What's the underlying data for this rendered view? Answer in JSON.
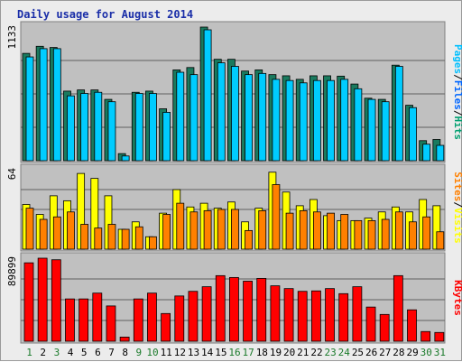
{
  "title": "Daily usage for August 2014",
  "chart_data": [
    {
      "type": "bar",
      "panel": "pages-files-hits",
      "y_axis_max_label": "1133",
      "y_axis_max": 1133,
      "grid": "horizontal",
      "legend": [
        {
          "label": "Pages",
          "color": "#00c0ff"
        },
        {
          "label": "Files",
          "color": "#0066ff"
        },
        {
          "label": "Hits",
          "color": "#00a070"
        }
      ],
      "categories": [
        "1",
        "2",
        "3",
        "4",
        "5",
        "6",
        "7",
        "8",
        "9",
        "10",
        "11",
        "12",
        "13",
        "14",
        "15",
        "16",
        "17",
        "18",
        "19",
        "20",
        "21",
        "22",
        "23",
        "24",
        "25",
        "26",
        "27",
        "28",
        "29",
        "30",
        "31"
      ],
      "series": [
        {
          "name": "Hits",
          "color": "#1a7a5e",
          "values": [
            910,
            970,
            960,
            590,
            600,
            600,
            520,
            60,
            580,
            590,
            440,
            770,
            790,
            1133,
            860,
            860,
            760,
            770,
            730,
            720,
            690,
            720,
            720,
            717,
            650,
            530,
            520,
            810,
            470,
            170,
            180
          ]
        },
        {
          "name": "Pages",
          "color": "#00ccff",
          "values": [
            880,
            950,
            950,
            550,
            570,
            580,
            500,
            40,
            570,
            570,
            410,
            750,
            730,
            1110,
            830,
            800,
            730,
            740,
            690,
            680,
            660,
            680,
            680,
            690,
            610,
            520,
            500,
            800,
            450,
            140,
            130
          ]
        }
      ]
    },
    {
      "type": "bar",
      "panel": "visits-sites",
      "y_axis_max_label": "64",
      "y_axis_max": 64,
      "grid": "horizontal",
      "legend": [
        {
          "label": "Sites",
          "color": "#ff8000"
        },
        {
          "label": "Visits",
          "color": "#ffff00"
        }
      ],
      "categories": [
        "1",
        "2",
        "3",
        "4",
        "5",
        "6",
        "7",
        "8",
        "9",
        "10",
        "11",
        "12",
        "13",
        "14",
        "15",
        "16",
        "17",
        "18",
        "19",
        "20",
        "21",
        "22",
        "23",
        "24",
        "25",
        "26",
        "27",
        "28",
        "29",
        "30",
        "31"
      ],
      "series": [
        {
          "name": "Visits",
          "color": "#ffff00",
          "values": [
            36,
            28,
            43,
            39,
            61,
            57,
            43,
            16,
            22,
            10,
            29,
            48,
            34,
            37,
            33,
            38,
            22,
            33,
            62,
            46,
            35,
            40,
            27,
            23,
            23,
            25,
            30,
            34,
            30,
            40,
            35
          ]
        },
        {
          "name": "Sites",
          "color": "#ff8000",
          "values": [
            33,
            24,
            26,
            30,
            20,
            17,
            20,
            16,
            18,
            10,
            28,
            37,
            30,
            31,
            32,
            32,
            15,
            31,
            52,
            29,
            31,
            30,
            29,
            28,
            23,
            23,
            24,
            30,
            22,
            26,
            14
          ]
        }
      ]
    },
    {
      "type": "bar",
      "panel": "kbytes",
      "y_axis_max_label": "89899",
      "y_axis_max": 89899,
      "grid": "horizontal",
      "legend": [
        {
          "label": "KBytes",
          "color": "#ff0000"
        }
      ],
      "categories": [
        "1",
        "2",
        "3",
        "4",
        "5",
        "6",
        "7",
        "8",
        "9",
        "10",
        "11",
        "12",
        "13",
        "14",
        "15",
        "16",
        "17",
        "18",
        "19",
        "20",
        "21",
        "22",
        "23",
        "24",
        "25",
        "26",
        "27",
        "28",
        "29",
        "30",
        "31"
      ],
      "series": [
        {
          "name": "KBytes",
          "color": "#ff0000",
          "values": [
            84900,
            89899,
            88200,
            45800,
            45800,
            52100,
            38200,
            4500,
            45800,
            52100,
            30000,
            49000,
            54000,
            59000,
            71000,
            69000,
            65000,
            68000,
            60000,
            57000,
            54000,
            54500,
            57000,
            51500,
            59000,
            37000,
            29000,
            71000,
            34000,
            10500,
            9500
          ]
        }
      ]
    }
  ],
  "x_labels": [
    {
      "text": "1",
      "color": "#1a7a2a"
    },
    {
      "text": "2",
      "color": "#000000"
    },
    {
      "text": "3",
      "color": "#1a7a2a"
    },
    {
      "text": "4",
      "color": "#000000"
    },
    {
      "text": "5",
      "color": "#000000"
    },
    {
      "text": "6",
      "color": "#000000"
    },
    {
      "text": "7",
      "color": "#000000"
    },
    {
      "text": "8",
      "color": "#000000"
    },
    {
      "text": "9",
      "color": "#1a7a2a"
    },
    {
      "text": "10",
      "color": "#1a7a2a"
    },
    {
      "text": "11",
      "color": "#000000"
    },
    {
      "text": "12",
      "color": "#000000"
    },
    {
      "text": "13",
      "color": "#000000"
    },
    {
      "text": "14",
      "color": "#000000"
    },
    {
      "text": "15",
      "color": "#000000"
    },
    {
      "text": "16",
      "color": "#1a7a2a"
    },
    {
      "text": "17",
      "color": "#1a7a2a"
    },
    {
      "text": "18",
      "color": "#000000"
    },
    {
      "text": "19",
      "color": "#000000"
    },
    {
      "text": "20",
      "color": "#000000"
    },
    {
      "text": "21",
      "color": "#000000"
    },
    {
      "text": "22",
      "color": "#000000"
    },
    {
      "text": "23",
      "color": "#1a7a2a"
    },
    {
      "text": "24",
      "color": "#1a7a2a"
    },
    {
      "text": "25",
      "color": "#000000"
    },
    {
      "text": "26",
      "color": "#000000"
    },
    {
      "text": "27",
      "color": "#000000"
    },
    {
      "text": "28",
      "color": "#000000"
    },
    {
      "text": "29",
      "color": "#000000"
    },
    {
      "text": "30",
      "color": "#1a7a2a"
    },
    {
      "text": "31",
      "color": "#1a7a2a"
    }
  ],
  "colors": {
    "frame_bg": "#ececec",
    "plot_bg": "#c0c0c0",
    "title": "#1a2ea8",
    "separator": "#000000"
  }
}
